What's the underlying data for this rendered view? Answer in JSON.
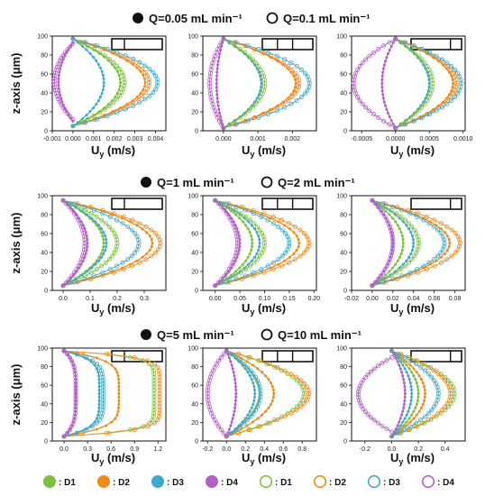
{
  "colors": {
    "D1": "#7fbf3f",
    "D2": "#f08a1c",
    "D3": "#3fa9c9",
    "D4": "#b35fc6"
  },
  "groups": [
    {
      "legend_filled": "Q=0.05 mL min⁻¹",
      "legend_hollow": "Q=0.1 mL min⁻¹"
    },
    {
      "legend_filled": "Q=1 mL min⁻¹",
      "legend_hollow": "Q=2 mL min⁻¹"
    },
    {
      "legend_filled": "Q=5 mL min⁻¹",
      "legend_hollow": "Q=10 mL min⁻¹"
    }
  ],
  "bottom_legend": [
    {
      "series": "D1",
      "style": "filled",
      "label": ": D1"
    },
    {
      "series": "D2",
      "style": "filled",
      "label": ": D2"
    },
    {
      "series": "D3",
      "style": "filled",
      "label": ": D3"
    },
    {
      "series": "D4",
      "style": "filled",
      "label": ": D4"
    },
    {
      "series": "D1",
      "style": "hollow",
      "label": ": D1"
    },
    {
      "series": "D2",
      "style": "hollow",
      "label": ": D2"
    },
    {
      "series": "D3",
      "style": "hollow",
      "label": ": D3"
    },
    {
      "series": "D4",
      "style": "hollow",
      "label": ": D4"
    }
  ],
  "chart_data": [
    {
      "type": "line",
      "row": 0,
      "col": 0,
      "xlabel": "Uy (m/s)",
      "ylabel": "z-axis (μm)",
      "xlim": [
        -0.001,
        0.0045
      ],
      "ylim": [
        0,
        100
      ],
      "xticks": [
        "-0.001",
        "0.000",
        "0.001",
        "0.002",
        "0.003",
        "0.004"
      ],
      "yticks": [
        "0",
        "20",
        "40",
        "60",
        "80",
        "100"
      ],
      "inset_dividers": [
        0.25
      ],
      "series": [
        {
          "name": "D1",
          "style": "filled",
          "peak": 0.0023,
          "z0": 5,
          "z1": 97
        },
        {
          "name": "D2",
          "style": "filled",
          "peak": 0.0035,
          "z0": 5,
          "z1": 97
        },
        {
          "name": "D3",
          "style": "filled",
          "peak": 0.0015,
          "z0": 5,
          "z1": 97
        },
        {
          "name": "D4",
          "style": "filled",
          "peak": -0.0007,
          "z0": 10,
          "z1": 93
        },
        {
          "name": "D1",
          "style": "hollow",
          "peak": 0.0025,
          "z0": 5,
          "z1": 97
        },
        {
          "name": "D2",
          "style": "hollow",
          "peak": 0.0037,
          "z0": 5,
          "z1": 97
        },
        {
          "name": "D3",
          "style": "hollow",
          "peak": 0.0041,
          "z0": 5,
          "z1": 97
        },
        {
          "name": "D4",
          "style": "hollow",
          "peak": -0.0009,
          "z0": 12,
          "z1": 92
        }
      ]
    },
    {
      "type": "line",
      "row": 0,
      "col": 1,
      "xlabel": "Uy (m/s)",
      "ylabel": "",
      "xlim": [
        -0.0006,
        0.0027
      ],
      "ylim": [
        0,
        100
      ],
      "xticks": [
        "0.000",
        "0.001",
        "0.002"
      ],
      "yticks": [
        "0",
        "20",
        "40",
        "60",
        "80",
        "100"
      ],
      "inset_dividers": [
        0.3,
        0.6
      ],
      "series": [
        {
          "name": "D1",
          "style": "filled",
          "peak": 0.0011,
          "z0": 3,
          "z1": 97
        },
        {
          "name": "D2",
          "style": "filled",
          "peak": 0.0021,
          "z0": 3,
          "z1": 97
        },
        {
          "name": "D3",
          "style": "filled",
          "peak": 0.0011,
          "z0": 3,
          "z1": 97
        },
        {
          "name": "D4",
          "style": "filled",
          "peak": -0.0002,
          "z0": 3,
          "z1": 97
        },
        {
          "name": "D1",
          "style": "hollow",
          "peak": 0.0012,
          "z0": 3,
          "z1": 97
        },
        {
          "name": "D2",
          "style": "hollow",
          "peak": 0.0022,
          "z0": 3,
          "z1": 97
        },
        {
          "name": "D3",
          "style": "hollow",
          "peak": 0.0025,
          "z0": 3,
          "z1": 97
        },
        {
          "name": "D4",
          "style": "hollow",
          "peak": -0.0004,
          "z0": 3,
          "z1": 97
        }
      ]
    },
    {
      "type": "line",
      "row": 0,
      "col": 2,
      "xlabel": "Uy (m/s)",
      "ylabel": "",
      "xlim": [
        -0.00065,
        0.00103
      ],
      "ylim": [
        0,
        100
      ],
      "xticks": [
        "-0.0005",
        "0.0000",
        "0.0005",
        "0.0010"
      ],
      "yticks": [
        "0",
        "20",
        "40",
        "60",
        "80",
        "100"
      ],
      "inset_dividers": [
        0.78
      ],
      "series": [
        {
          "name": "D1",
          "style": "filled",
          "peak": 0.0005,
          "z0": 3,
          "z1": 97
        },
        {
          "name": "D2",
          "style": "filled",
          "peak": 0.00085,
          "z0": 3,
          "z1": 97
        },
        {
          "name": "D3",
          "style": "filled",
          "peak": 0.0005,
          "z0": 3,
          "z1": 97
        },
        {
          "name": "D4",
          "style": "filled",
          "peak": -0.0002,
          "z0": 3,
          "z1": 97
        },
        {
          "name": "D1",
          "style": "hollow",
          "peak": 0.00055,
          "z0": 3,
          "z1": 97
        },
        {
          "name": "D2",
          "style": "hollow",
          "peak": 0.0009,
          "z0": 3,
          "z1": 97
        },
        {
          "name": "D3",
          "style": "hollow",
          "peak": 0.00097,
          "z0": 3,
          "z1": 97
        },
        {
          "name": "D4",
          "style": "hollow",
          "peak": -0.00062,
          "z0": 3,
          "z1": 97
        }
      ]
    },
    {
      "type": "line",
      "row": 1,
      "col": 0,
      "xlabel": "Uy (m/s)",
      "ylabel": "z-axis (μm)",
      "xlim": [
        -0.04,
        0.38
      ],
      "ylim": [
        0,
        100
      ],
      "xticks": [
        "0.0",
        "0.1",
        "0.2",
        "0.3"
      ],
      "yticks": [
        "0",
        "20",
        "40",
        "60",
        "80",
        "100"
      ],
      "inset_dividers": [
        0.25
      ],
      "series": [
        {
          "name": "D1",
          "style": "filled",
          "peak": 0.15,
          "z0": 5,
          "z1": 95
        },
        {
          "name": "D2",
          "style": "filled",
          "peak": 0.33,
          "z0": 5,
          "z1": 95
        },
        {
          "name": "D3",
          "style": "filled",
          "peak": 0.16,
          "z0": 5,
          "z1": 95
        },
        {
          "name": "D4",
          "style": "filled",
          "peak": 0.09,
          "z0": 5,
          "z1": 95
        },
        {
          "name": "D1",
          "style": "hollow",
          "peak": 0.2,
          "z0": 5,
          "z1": 95
        },
        {
          "name": "D2",
          "style": "hollow",
          "peak": 0.36,
          "z0": 5,
          "z1": 95
        },
        {
          "name": "D3",
          "style": "hollow",
          "peak": 0.28,
          "z0": 5,
          "z1": 95
        },
        {
          "name": "D4",
          "style": "hollow",
          "peak": 0.08,
          "z0": 5,
          "z1": 95
        }
      ]
    },
    {
      "type": "line",
      "row": 1,
      "col": 1,
      "xlabel": "Uy (m/s)",
      "ylabel": "",
      "xlim": [
        -0.025,
        0.205
      ],
      "ylim": [
        0,
        100
      ],
      "xticks": [
        "0.00",
        "0.05",
        "0.10",
        "0.15",
        "0.20"
      ],
      "yticks": [
        "0",
        "20",
        "40",
        "60",
        "80",
        "100"
      ],
      "inset_dividers": [
        0.3,
        0.6
      ],
      "series": [
        {
          "name": "D1",
          "style": "filled",
          "peak": 0.075,
          "z0": 5,
          "z1": 95
        },
        {
          "name": "D2",
          "style": "filled",
          "peak": 0.17,
          "z0": 5,
          "z1": 95
        },
        {
          "name": "D3",
          "style": "filled",
          "peak": 0.09,
          "z0": 5,
          "z1": 95
        },
        {
          "name": "D4",
          "style": "filled",
          "peak": 0.05,
          "z0": 5,
          "z1": 95
        },
        {
          "name": "D1",
          "style": "hollow",
          "peak": 0.1,
          "z0": 5,
          "z1": 95
        },
        {
          "name": "D2",
          "style": "hollow",
          "peak": 0.19,
          "z0": 5,
          "z1": 95
        },
        {
          "name": "D3",
          "style": "hollow",
          "peak": 0.15,
          "z0": 5,
          "z1": 95
        },
        {
          "name": "D4",
          "style": "hollow",
          "peak": 0.045,
          "z0": 5,
          "z1": 95
        }
      ]
    },
    {
      "type": "line",
      "row": 1,
      "col": 2,
      "xlabel": "Uy (m/s)",
      "ylabel": "",
      "xlim": [
        -0.02,
        0.09
      ],
      "ylim": [
        0,
        100
      ],
      "xticks": [
        "-0.02",
        "0.00",
        "0.02",
        "0.04",
        "0.06",
        "0.08"
      ],
      "yticks": [
        "0",
        "20",
        "40",
        "60",
        "80",
        "100"
      ],
      "inset_dividers": [
        0.78
      ],
      "series": [
        {
          "name": "D1",
          "style": "filled",
          "peak": 0.03,
          "z0": 5,
          "z1": 95
        },
        {
          "name": "D2",
          "style": "filled",
          "peak": 0.075,
          "z0": 5,
          "z1": 95
        },
        {
          "name": "D3",
          "style": "filled",
          "peak": 0.04,
          "z0": 5,
          "z1": 95
        },
        {
          "name": "D4",
          "style": "filled",
          "peak": 0.02,
          "z0": 5,
          "z1": 95
        },
        {
          "name": "D1",
          "style": "hollow",
          "peak": 0.045,
          "z0": 5,
          "z1": 95
        },
        {
          "name": "D2",
          "style": "hollow",
          "peak": 0.085,
          "z0": 5,
          "z1": 95
        },
        {
          "name": "D3",
          "style": "hollow",
          "peak": 0.07,
          "z0": 5,
          "z1": 95
        },
        {
          "name": "D4",
          "style": "hollow",
          "peak": 0.02,
          "z0": 5,
          "z1": 95
        }
      ]
    },
    {
      "type": "line",
      "row": 2,
      "col": 0,
      "xlabel": "Uy (m/s)",
      "ylabel": "z-axis (μm)",
      "xlim": [
        -0.15,
        1.3
      ],
      "ylim": [
        0,
        100
      ],
      "xticks": [
        "0.0",
        "0.3",
        "0.6",
        "0.9",
        "1.2"
      ],
      "yticks": [
        "0",
        "20",
        "40",
        "60",
        "80",
        "100"
      ],
      "inset_dividers": [
        0.25
      ],
      "series": [
        {
          "name": "D1",
          "style": "filled",
          "peak": 0.45,
          "z0": 5,
          "z1": 97,
          "shape": 5
        },
        {
          "name": "D2",
          "style": "filled",
          "peak": 0.7,
          "z0": 5,
          "z1": 97,
          "shape": 5
        },
        {
          "name": "D3",
          "style": "filled",
          "peak": 0.45,
          "z0": 5,
          "z1": 97,
          "shape": 5
        },
        {
          "name": "D4",
          "style": "filled",
          "peak": 0.15,
          "z0": 5,
          "z1": 97,
          "shape": 4
        },
        {
          "name": "D1",
          "style": "hollow",
          "peak": 1.15,
          "z0": 5,
          "z1": 97,
          "shape": 8
        },
        {
          "name": "D2",
          "style": "hollow",
          "peak": 1.22,
          "z0": 5,
          "z1": 97,
          "shape": 8
        },
        {
          "name": "D3",
          "style": "hollow",
          "peak": 0.5,
          "z0": 5,
          "z1": 97,
          "shape": 5
        },
        {
          "name": "D4",
          "style": "hollow",
          "peak": 0.15,
          "z0": 5,
          "z1": 97,
          "shape": 4
        }
      ]
    },
    {
      "type": "line",
      "row": 2,
      "col": 1,
      "xlabel": "Uy (m/s)",
      "ylabel": "",
      "xlim": [
        -0.25,
        0.95
      ],
      "ylim": [
        0,
        100
      ],
      "xticks": [
        "-0.2",
        "0.0",
        "0.2",
        "0.4",
        "0.6",
        "0.8"
      ],
      "yticks": [
        "0",
        "20",
        "40",
        "60",
        "80",
        "100"
      ],
      "inset_dividers": [
        0.3,
        0.6
      ],
      "series": [
        {
          "name": "D1",
          "style": "filled",
          "peak": 0.35,
          "z0": 5,
          "z1": 97
        },
        {
          "name": "D2",
          "style": "filled",
          "peak": 0.5,
          "z0": 5,
          "z1": 97
        },
        {
          "name": "D3",
          "style": "filled",
          "peak": 0.3,
          "z0": 5,
          "z1": 97
        },
        {
          "name": "D4",
          "style": "filled",
          "peak": 0.1,
          "z0": 5,
          "z1": 97
        },
        {
          "name": "D1",
          "style": "hollow",
          "peak": 0.82,
          "z0": 5,
          "z1": 97
        },
        {
          "name": "D2",
          "style": "hollow",
          "peak": 0.87,
          "z0": 5,
          "z1": 97
        },
        {
          "name": "D3",
          "style": "hollow",
          "peak": 0.36,
          "z0": 5,
          "z1": 97
        },
        {
          "name": "D4",
          "style": "hollow",
          "peak": -0.2,
          "z0": 5,
          "z1": 97
        }
      ]
    },
    {
      "type": "line",
      "row": 2,
      "col": 2,
      "xlabel": "Uy (m/s)",
      "ylabel": "",
      "xlim": [
        -0.3,
        0.55
      ],
      "ylim": [
        0,
        100
      ],
      "xticks": [
        "-0.2",
        "0.0",
        "0.2",
        "0.4"
      ],
      "yticks": [
        "0",
        "20",
        "40",
        "60",
        "80",
        "100"
      ],
      "inset_dividers": [
        0.78
      ],
      "series": [
        {
          "name": "D1",
          "style": "filled",
          "peak": 0.2,
          "z0": 5,
          "z1": 97
        },
        {
          "name": "D2",
          "style": "filled",
          "peak": 0.25,
          "z0": 5,
          "z1": 97
        },
        {
          "name": "D3",
          "style": "filled",
          "peak": 0.15,
          "z0": 5,
          "z1": 97
        },
        {
          "name": "D4",
          "style": "filled",
          "peak": 0.1,
          "z0": 5,
          "z1": 97
        },
        {
          "name": "D1",
          "style": "hollow",
          "peak": 0.47,
          "z0": 5,
          "z1": 97
        },
        {
          "name": "D2",
          "style": "hollow",
          "peak": 0.44,
          "z0": 5,
          "z1": 97
        },
        {
          "name": "D3",
          "style": "hollow",
          "peak": 0.35,
          "z0": 5,
          "z1": 97
        },
        {
          "name": "D4",
          "style": "hollow",
          "peak": -0.25,
          "z0": 10,
          "z1": 90
        }
      ]
    }
  ]
}
